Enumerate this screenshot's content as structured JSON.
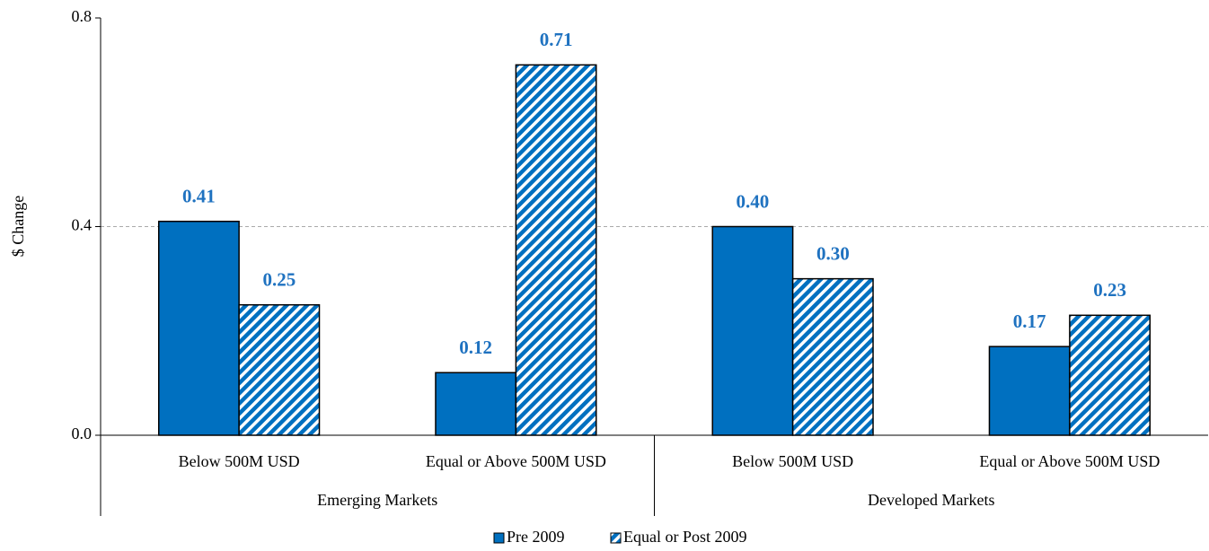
{
  "chart_data": {
    "type": "bar",
    "y_label": "$ Change",
    "categories": [
      "Below 500M USD",
      "Equal or Above 500M USD",
      "Below 500M USD",
      "Equal or Above 500M USD"
    ],
    "groups": [
      "Emerging Markets",
      "Developed Markets"
    ],
    "series": [
      {
        "name": "Pre 2009",
        "color": "#0070c0",
        "pattern": "solid",
        "values": [
          0.41,
          0.12,
          0.4,
          0.17
        ],
        "value_labels": [
          "0.41",
          "0.12",
          "0.40",
          "0.17"
        ]
      },
      {
        "name": "Equal or Post 2009",
        "color": "#0070c0",
        "pattern": "hatch",
        "values": [
          0.25,
          0.71,
          0.3,
          0.23
        ],
        "value_labels": [
          "0.25",
          "0.71",
          "0.30",
          "0.23"
        ]
      }
    ],
    "ylim": [
      0,
      0.8
    ],
    "yticks": [
      {
        "value": 0,
        "label": "0.0"
      },
      {
        "value": 0.4,
        "label": "0.4"
      },
      {
        "value": 0.8,
        "label": "0.8"
      }
    ],
    "grid": true,
    "legend": "bottom"
  }
}
